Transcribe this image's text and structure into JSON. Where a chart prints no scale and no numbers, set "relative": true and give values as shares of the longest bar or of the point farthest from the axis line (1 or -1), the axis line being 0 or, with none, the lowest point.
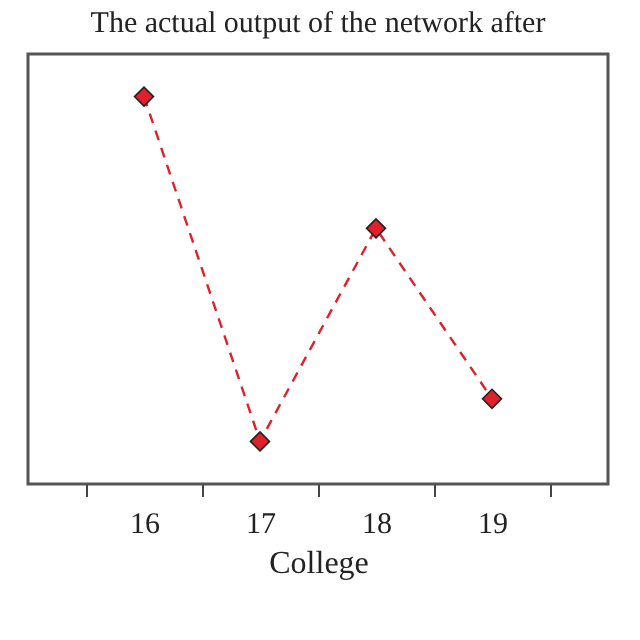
{
  "chart_data": {
    "type": "line",
    "title": "The actual output of the network after",
    "xlabel": "College",
    "categories": [
      "16",
      "17",
      "18",
      "19"
    ],
    "relative": true,
    "series": [
      {
        "color": "#e0202a",
        "values": [
          1,
          0.11,
          0.66,
          0.22
        ]
      }
    ],
    "marker": "diamond",
    "line_style": "dashed"
  }
}
